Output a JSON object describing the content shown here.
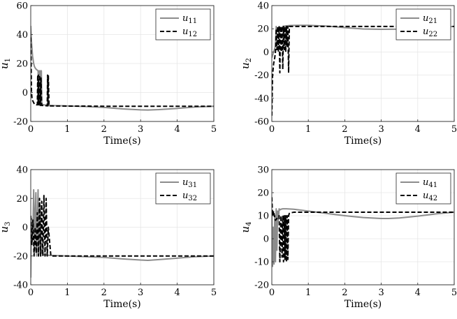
{
  "chart_data": [
    {
      "type": "line",
      "xlabel": "Time(s)",
      "ylabel": {
        "base": "u",
        "sub": "1"
      },
      "xlim": [
        0,
        5
      ],
      "ylim": [
        -20,
        60
      ],
      "xticks": [
        0,
        1,
        2,
        3,
        4,
        5
      ],
      "yticks": [
        -20,
        0,
        20,
        40,
        60
      ],
      "legend_position": "top-right",
      "series": [
        {
          "name": "u",
          "sub": "11",
          "style": "solid",
          "color": "#8c8c8c",
          "x": [
            0,
            0.02,
            0.05,
            0.08,
            0.1,
            0.12,
            0.15,
            0.2,
            0.22,
            0.23,
            0.25,
            0.26,
            0.28,
            0.29,
            0.3,
            0.35,
            0.5,
            1,
            1.5,
            2,
            2.5,
            3,
            3.2,
            3.5,
            4,
            4.5,
            5
          ],
          "y": [
            46,
            35,
            25,
            20,
            18,
            17,
            16,
            15,
            -6,
            15,
            -6,
            15,
            -6,
            15,
            -8,
            -8.5,
            -9,
            -9.3,
            -9.7,
            -10.3,
            -11.3,
            -12,
            -12.1,
            -11.8,
            -11,
            -10,
            -9.5
          ]
        },
        {
          "name": "u",
          "sub": "12",
          "style": "dashed",
          "color": "#000000",
          "x": [
            0,
            0.01,
            0.02,
            0.04,
            0.06,
            0.08,
            0.1,
            0.15,
            0.18,
            0.19,
            0.2,
            0.21,
            0.22,
            0.24,
            0.26,
            0.28,
            0.3,
            0.35,
            0.45,
            0.46,
            0.47,
            0.48,
            0.5,
            0.6,
            1,
            1.5,
            2,
            3,
            4,
            5
          ],
          "y": [
            38,
            20,
            0,
            -5,
            -6,
            -7,
            -8,
            -8.5,
            -8.5,
            12,
            -8.5,
            12,
            -8.5,
            12,
            -9,
            10,
            -9,
            -9,
            -9.2,
            12,
            -9.2,
            12,
            -9.3,
            -9.3,
            -9.4,
            -9.4,
            -9.5,
            -9.5,
            -9.5,
            -9.5
          ]
        }
      ]
    },
    {
      "type": "line",
      "xlabel": "Time(s)",
      "ylabel": {
        "base": "u",
        "sub": "2"
      },
      "xlim": [
        0,
        5
      ],
      "ylim": [
        -60,
        40
      ],
      "xticks": [
        0,
        1,
        2,
        3,
        4,
        5
      ],
      "yticks": [
        -60,
        -40,
        -20,
        0,
        20,
        40
      ],
      "legend_position": "top-right",
      "series": [
        {
          "name": "u",
          "sub": "21",
          "style": "solid",
          "color": "#8c8c8c",
          "x": [
            0,
            0.05,
            0.1,
            0.12,
            0.15,
            0.2,
            0.25,
            0.3,
            0.4,
            0.5,
            0.7,
            1,
            1.5,
            2,
            2.5,
            3,
            3.5,
            4,
            4.5,
            5
          ],
          "y": [
            -5,
            0,
            5,
            22,
            18,
            22,
            20,
            22,
            22.5,
            22.8,
            23,
            23,
            22.3,
            21,
            19.8,
            19.5,
            19.7,
            20.3,
            21.2,
            22
          ]
        },
        {
          "name": "u",
          "sub": "22",
          "style": "dashed",
          "color": "#000000",
          "x": [
            0,
            0.02,
            0.05,
            0.08,
            0.1,
            0.12,
            0.14,
            0.16,
            0.18,
            0.2,
            0.22,
            0.24,
            0.26,
            0.28,
            0.3,
            0.32,
            0.34,
            0.36,
            0.38,
            0.4,
            0.42,
            0.44,
            0.46,
            0.48,
            0.5,
            0.6,
            1,
            2,
            3,
            4,
            5
          ],
          "y": [
            -55,
            -20,
            -10,
            -5,
            0,
            20,
            2,
            22,
            0,
            22,
            -18,
            22,
            0,
            22,
            -15,
            22,
            2,
            22,
            0,
            22,
            5,
            22,
            -18,
            22,
            22,
            22,
            22,
            22,
            22,
            22,
            22
          ]
        }
      ]
    },
    {
      "type": "line",
      "xlabel": "Time(s)",
      "ylabel": {
        "base": "u",
        "sub": "3"
      },
      "xlim": [
        0,
        5
      ],
      "ylim": [
        -40,
        40
      ],
      "xticks": [
        0,
        1,
        2,
        3,
        4,
        5
      ],
      "yticks": [
        -40,
        -20,
        0,
        20,
        40
      ],
      "legend_position": "top-right",
      "series": [
        {
          "name": "u",
          "sub": "31",
          "style": "solid",
          "color": "#8c8c8c",
          "x": [
            0,
            0.02,
            0.04,
            0.06,
            0.08,
            0.1,
            0.12,
            0.14,
            0.16,
            0.18,
            0.2,
            0.22,
            0.24,
            0.26,
            0.28,
            0.3,
            0.35,
            0.5,
            1,
            1.5,
            2,
            2.5,
            3,
            3.2,
            3.5,
            4,
            4.5,
            5
          ],
          "y": [
            -35,
            6,
            -10,
            0,
            26,
            -18,
            10,
            24,
            -20,
            5,
            26,
            -19,
            3,
            15,
            -15,
            -18,
            -19,
            -19.5,
            -20,
            -20.5,
            -21,
            -22,
            -22.8,
            -23,
            -22.5,
            -21.5,
            -20.5,
            -20
          ]
        },
        {
          "name": "u",
          "sub": "32",
          "style": "dashed",
          "color": "#000000",
          "x": [
            0,
            0.03,
            0.06,
            0.09,
            0.12,
            0.15,
            0.18,
            0.21,
            0.24,
            0.27,
            0.3,
            0.33,
            0.36,
            0.39,
            0.42,
            0.45,
            0.48,
            0.55,
            1,
            2,
            3,
            4,
            5
          ],
          "y": [
            8,
            -12,
            5,
            -20,
            0,
            -18,
            10,
            -20,
            20,
            -20,
            18,
            -20,
            22,
            -20,
            20,
            -20,
            0,
            -20,
            -20,
            -20,
            -20,
            -20,
            -20
          ]
        }
      ]
    },
    {
      "type": "line",
      "xlabel": "Time(s)",
      "ylabel": {
        "base": "u",
        "sub": "4"
      },
      "xlim": [
        0,
        5
      ],
      "ylim": [
        -20,
        30
      ],
      "xticks": [
        0,
        1,
        2,
        3,
        4,
        5
      ],
      "yticks": [
        -20,
        -10,
        0,
        10,
        20,
        30
      ],
      "legend_position": "top-right",
      "series": [
        {
          "name": "u",
          "sub": "41",
          "style": "solid",
          "color": "#8c8c8c",
          "x": [
            0,
            0.02,
            0.04,
            0.06,
            0.08,
            0.1,
            0.12,
            0.14,
            0.16,
            0.18,
            0.2,
            0.22,
            0.25,
            0.3,
            0.4,
            0.6,
            1,
            1.5,
            2,
            2.5,
            3,
            3.2,
            3.5,
            4,
            4.5,
            5
          ],
          "y": [
            12,
            -12,
            5,
            -11,
            10,
            -10,
            13,
            -5,
            12,
            8,
            13,
            12.5,
            12.8,
            13,
            13,
            12.8,
            12,
            11,
            10,
            9.2,
            8.8,
            8.8,
            9,
            9.8,
            10.8,
            11.5
          ]
        },
        {
          "name": "u",
          "sub": "42",
          "style": "dashed",
          "color": "#000000",
          "x": [
            0,
            0.02,
            0.05,
            0.08,
            0.1,
            0.15,
            0.2,
            0.22,
            0.25,
            0.28,
            0.3,
            0.32,
            0.34,
            0.36,
            0.38,
            0.4,
            0.42,
            0.44,
            0.46,
            0.48,
            0.5,
            0.6,
            1,
            2,
            3,
            4,
            5
          ],
          "y": [
            18,
            10,
            12,
            9,
            8,
            9,
            10,
            -10,
            10,
            -8,
            10,
            -10,
            10,
            -9,
            10,
            -10,
            10,
            -9,
            10,
            11,
            11.2,
            11.5,
            11.5,
            11.5,
            11.5,
            11.5,
            11.5
          ]
        }
      ]
    }
  ]
}
